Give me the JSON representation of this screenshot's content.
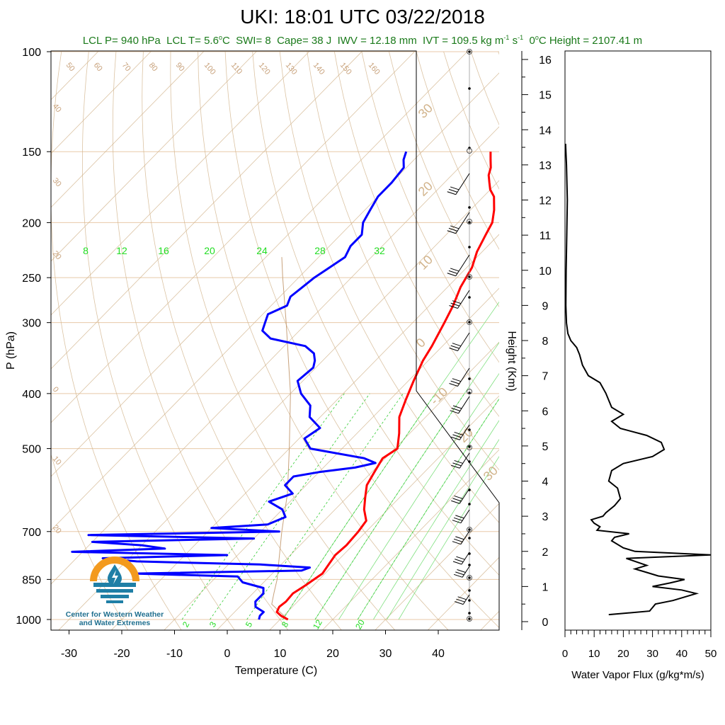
{
  "title": "UKI: 18:01 UTC 03/22/2018",
  "subtitle": {
    "lcl_p": "LCL P= 940 hPa",
    "lcl_t_prefix": "LCL T= 5.6",
    "lcl_t_suffix": "C",
    "swi": "SWI= 8",
    "cape": "Cape= 38 J",
    "iwv": "IWV = 12.18 mm",
    "ivt_prefix": "IVT = 109.5 kg m",
    "ivt_mid": " s",
    "sup_m1": "-1",
    "sup_s1": "-1",
    "zero_prefix": "0",
    "zero_suffix": "C Height = 2107.41 m",
    "deg": "o"
  },
  "logo": {
    "line1": "Center for Western Weather",
    "line2": "and Water Extremes"
  },
  "colors": {
    "temperature": "#ff0000",
    "dewpoint": "#0000ff",
    "isotherm": "#d2b48c",
    "mixing_ratio": "#00cc00",
    "subtitle": "#1a7a1a",
    "logo_orange": "#f39a1e",
    "logo_blue": "#1f7fa6"
  },
  "chart_data": [
    {
      "type": "line",
      "subtype": "skew-t log-p",
      "xlabel": "Temperature (C)",
      "ylabel": "P (hPa)",
      "x_ticks": [
        -30,
        -20,
        -10,
        0,
        10,
        20,
        30,
        40
      ],
      "y_ticks": [
        1000,
        850,
        700,
        500,
        400,
        300,
        250,
        200,
        150,
        100
      ],
      "xlim": [
        -34,
        50
      ],
      "ylim": [
        1000,
        100
      ],
      "isotherm_labels": [
        30,
        20,
        10,
        0,
        -10,
        20,
        30
      ],
      "dry_adiabat_labels": [
        "50",
        "60",
        "70",
        "80",
        "90",
        "100",
        "110",
        "120",
        "130",
        "140",
        "150",
        "160",
        "40",
        "30",
        "20",
        "0",
        "10",
        "20"
      ],
      "mixing_ratio_top_labels": [
        "8",
        "12",
        "16",
        "20",
        "24",
        "28",
        "32"
      ],
      "mixing_ratio_bottom_labels": [
        "2",
        "3",
        "5",
        "8",
        "12",
        "20"
      ],
      "series": [
        {
          "name": "",
          "role": "temperature",
          "p": [
            1000,
            985,
            970,
            950,
            930,
            900,
            870,
            850,
            830,
            800,
            770,
            740,
            700,
            670,
            640,
            610,
            580,
            550,
            520,
            500,
            470,
            440,
            410,
            380,
            350,
            330,
            300,
            280,
            260,
            240,
            225,
            210,
            200,
            190,
            180,
            175,
            170,
            165,
            160,
            155,
            150
          ],
          "t": [
            11.5,
            9.5,
            8.0,
            7.5,
            7.8,
            7.6,
            8.5,
            9.0,
            9.5,
            9.0,
            8.5,
            8.8,
            8.5,
            8.0,
            5.5,
            3.5,
            1.5,
            0.5,
            -0.5,
            0.5,
            -2.0,
            -5.0,
            -7.0,
            -9.0,
            -11.0,
            -12.0,
            -14.0,
            -15.5,
            -17.5,
            -19.0,
            -21.0,
            -22.5,
            -23.5,
            -25.5,
            -28.0,
            -30.0,
            -31.5,
            -33.0,
            -34.0,
            -35.5,
            -37.0
          ]
        },
        {
          "name": "",
          "role": "dewpoint",
          "p": [
            1000,
            985,
            970,
            950,
            930,
            900,
            880,
            860,
            840,
            830,
            820,
            810,
            800,
            790,
            780,
            770,
            760,
            750,
            740,
            730,
            720,
            710,
            700,
            690,
            680,
            660,
            640,
            620,
            600,
            580,
            560,
            550,
            540,
            530,
            520,
            500,
            480,
            460,
            440,
            420,
            400,
            380,
            360,
            350,
            340,
            330,
            320,
            310,
            300,
            290,
            280,
            270,
            260,
            250,
            240,
            230,
            220,
            210,
            200,
            190,
            180,
            170,
            160,
            155,
            150
          ],
          "td": [
            6.0,
            5.5,
            5.5,
            3.0,
            2.0,
            2.0,
            1.0,
            -4.0,
            -6.0,
            -26.0,
            5.0,
            6.0,
            -4.0,
            -28.0,
            -35.0,
            -12.0,
            -42.0,
            -25.0,
            -30.0,
            -40.0,
            -10.0,
            -42.0,
            -6.5,
            -20.0,
            -10.0,
            -8.0,
            -10.0,
            -14.0,
            -11.0,
            -14.0,
            -14.0,
            -10.0,
            -4.0,
            -1.0,
            -4.0,
            -16.0,
            -19.0,
            -18.0,
            -22.0,
            -24.0,
            -28.0,
            -31.0,
            -30.5,
            -31.5,
            -33.0,
            -36.0,
            -44.0,
            -47.0,
            -48.0,
            -49.0,
            -47.0,
            -48.0,
            -47.5,
            -47.0,
            -46.0,
            -45.0,
            -46.0,
            -46.0,
            -48.0,
            -49.0,
            -50.0,
            -50.0,
            -50.5,
            -52.0,
            -53.0
          ]
        },
        {
          "name": "",
          "role": "parcel",
          "p": [
            1000,
            940,
            900,
            850,
            800,
            700,
            600,
            500,
            400,
            300,
            250,
            230
          ],
          "t": [
            11.5,
            5.6,
            4.0,
            2.0,
            -0.5,
            -6.0,
            -12.0,
            -20.0,
            -30.0,
            -44.0,
            -53.0,
            -57.0
          ]
        }
      ],
      "wind_barbs_present": true
    },
    {
      "type": "line",
      "xlabel": "Water Vapor Flux (g/kg*m/s)",
      "ylabel": "Height (Km)",
      "x_ticks": [
        0,
        10,
        20,
        30,
        40,
        50
      ],
      "y_ticks": [
        0,
        1,
        2,
        3,
        4,
        5,
        6,
        7,
        8,
        9,
        10,
        11,
        12,
        13,
        14,
        15,
        16
      ],
      "xlim": [
        0,
        50
      ],
      "ylim": [
        -0.2,
        16.3
      ],
      "series": [
        {
          "name": "",
          "height_km": [
            0.2,
            0.3,
            0.5,
            0.6,
            0.8,
            0.9,
            1.0,
            1.1,
            1.2,
            1.3,
            1.4,
            1.5,
            1.6,
            1.8,
            1.9,
            2.0,
            2.1,
            2.3,
            2.4,
            2.5,
            2.6,
            2.7,
            2.8,
            2.9,
            3.0,
            3.1,
            3.3,
            3.5,
            3.8,
            4.0,
            4.3,
            4.5,
            4.7,
            4.9,
            5.1,
            5.3,
            5.5,
            5.7,
            5.9,
            6.1,
            6.3,
            6.5,
            6.8,
            7.0,
            7.3,
            7.6,
            7.8,
            8.0,
            8.2,
            8.5,
            9.0,
            10.0,
            11.0,
            12.0,
            13.0,
            13.6
          ],
          "flux": [
            15.0,
            29.0,
            31.0,
            37.0,
            45.0,
            40.0,
            30.0,
            36.0,
            41.0,
            32.0,
            28.0,
            24.0,
            28.0,
            21.0,
            50.0,
            24.0,
            20.0,
            16.0,
            17.0,
            22.0,
            11.0,
            12.0,
            10.0,
            9.0,
            13.0,
            14.0,
            17.0,
            19.0,
            18.0,
            15.0,
            16.0,
            20.0,
            30.0,
            34.0,
            33.0,
            28.0,
            19.0,
            16.0,
            20.0,
            16.0,
            15.0,
            14.0,
            12.0,
            8.0,
            6.0,
            5.0,
            4.0,
            2.0,
            1.0,
            0.5,
            0.3,
            0.4,
            0.6,
            0.8,
            0.5,
            0.2
          ]
        }
      ]
    }
  ]
}
